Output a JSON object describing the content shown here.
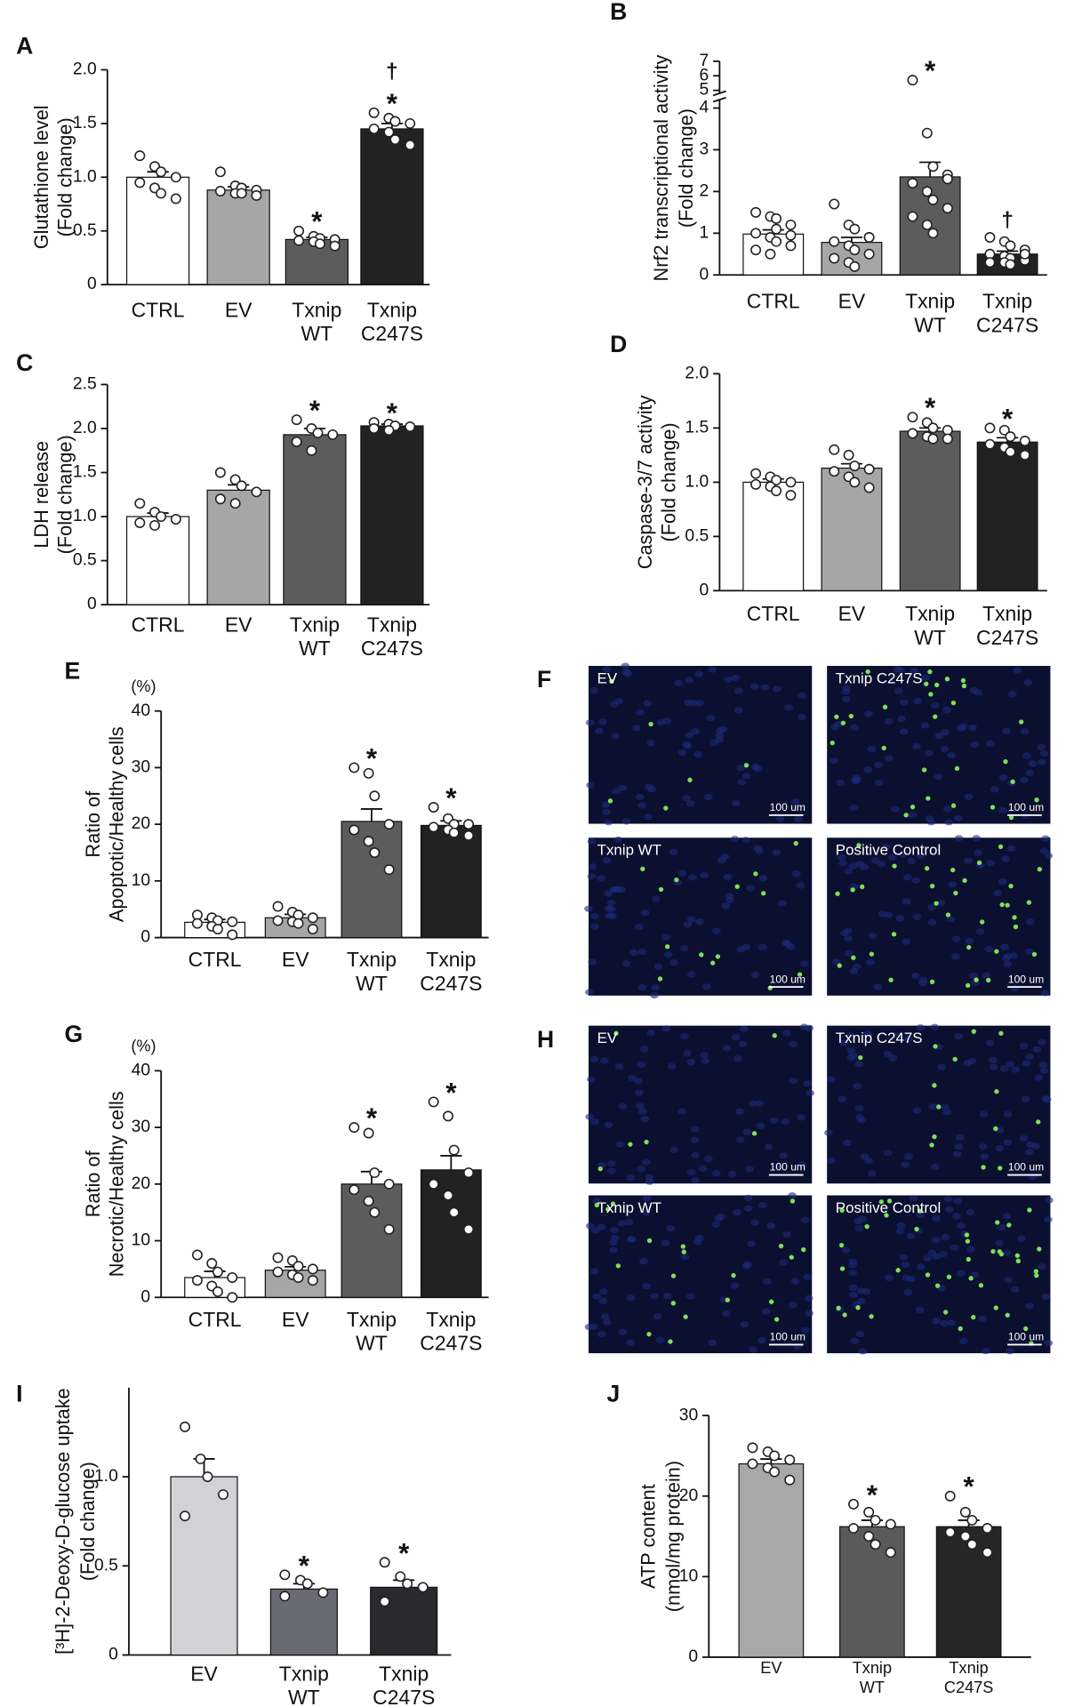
{
  "chart_data": [
    {
      "type": "bar",
      "label": "A",
      "ylabel": [
        "Glutathione level",
        "(Fold change)"
      ],
      "categories": [
        "CTRL",
        "EV",
        "Txnip\nWT",
        "Txnip\nC247S"
      ],
      "values": [
        1.0,
        0.88,
        0.42,
        1.45
      ],
      "errors": [
        0.05,
        0.03,
        0.02,
        0.05
      ],
      "points": [
        [
          1.2,
          1.1,
          1.05,
          1.0,
          0.95,
          0.9,
          0.85,
          0.8
        ],
        [
          1.05,
          0.92,
          0.9,
          0.88,
          0.87,
          0.85,
          0.85,
          0.83
        ],
        [
          0.5,
          0.45,
          0.43,
          0.42,
          0.41,
          0.4,
          0.38,
          0.36
        ],
        [
          1.6,
          1.55,
          1.52,
          1.5,
          1.45,
          1.42,
          1.35,
          1.3
        ]
      ],
      "colors": [
        "#ffffff",
        "#a6a6a6",
        "#5c5c5c",
        "#222222"
      ],
      "markers": [
        null,
        null,
        [
          "*"
        ],
        [
          "†",
          "*"
        ]
      ],
      "ylim": [
        0,
        2
      ],
      "yticks": [
        0,
        0.5,
        {
          "value": 1,
          "label": "1.0"
        },
        1.5,
        {
          "value": 2,
          "label": "2.0"
        }
      ]
    },
    {
      "type": "bar",
      "label": "B",
      "ylabel": [
        "Nrf2 transcriptional activity",
        "(Fold change)"
      ],
      "categories": [
        "CTRL",
        "EV",
        "Txnip\nWT",
        "Txnip\nC247S"
      ],
      "values": [
        0.98,
        0.78,
        2.35,
        0.5
      ],
      "errors": [
        0.1,
        0.12,
        0.35,
        0.07
      ],
      "points": [
        [
          1.5,
          1.4,
          1.35,
          1.2,
          1.0,
          0.9,
          0.8,
          0.7,
          0.6,
          0.5,
          1.1,
          0.95
        ],
        [
          1.7,
          1.2,
          1.1,
          0.9,
          0.8,
          0.7,
          0.6,
          0.5,
          0.4,
          0.3,
          0.2,
          0.9
        ],
        [
          5.7,
          3.4,
          2.6,
          2.4,
          2.2,
          2.0,
          1.8,
          1.6,
          1.4,
          1.2,
          1.0,
          2.3
        ],
        [
          0.9,
          0.8,
          0.7,
          0.6,
          0.5,
          0.45,
          0.4,
          0.35,
          0.3,
          0.3,
          0.25,
          0.5
        ]
      ],
      "colors": [
        "#ffffff",
        "#a6a6a6",
        "#5c5c5c",
        "#222222"
      ],
      "markers": [
        null,
        null,
        [
          "*"
        ],
        [
          "†"
        ]
      ],
      "ylim": [
        0,
        7
      ],
      "ybreak": [
        4.2,
        4.8
      ],
      "yticks": [
        0,
        1,
        2,
        3,
        4,
        5,
        6,
        7
      ]
    },
    {
      "type": "bar",
      "label": "C",
      "ylabel": [
        "LDH release",
        "(Fold change)"
      ],
      "categories": [
        "CTRL",
        "EV",
        "Txnip\nWT",
        "Txnip\nC247S"
      ],
      "values": [
        1.0,
        1.3,
        1.93,
        2.03
      ],
      "errors": [
        0.04,
        0.06,
        0.07,
        0.02
      ],
      "points": [
        [
          1.15,
          1.05,
          1.0,
          0.97,
          0.93,
          0.9
        ],
        [
          1.5,
          1.42,
          1.35,
          1.28,
          1.2,
          1.15
        ],
        [
          2.1,
          2.0,
          1.95,
          1.93,
          1.85,
          1.75
        ],
        [
          2.07,
          2.05,
          2.03,
          2.02,
          2.0,
          1.98
        ]
      ],
      "colors": [
        "#ffffff",
        "#a6a6a6",
        "#5c5c5c",
        "#222222"
      ],
      "markers": [
        null,
        null,
        [
          "*"
        ],
        [
          "*"
        ]
      ],
      "ylim": [
        0,
        2.5
      ],
      "yticks": [
        0,
        0.5,
        {
          "value": 1,
          "label": "1.0"
        },
        1.5,
        {
          "value": 2,
          "label": "2.0"
        },
        2.5
      ]
    },
    {
      "type": "bar",
      "label": "D",
      "ylabel": [
        "Caspase-3/7 activity",
        "(Fold change)"
      ],
      "categories": [
        "CTRL",
        "EV",
        "Txnip\nWT",
        "Txnip\nC247S"
      ],
      "values": [
        1.0,
        1.13,
        1.47,
        1.37
      ],
      "errors": [
        0.03,
        0.04,
        0.03,
        0.04
      ],
      "points": [
        [
          1.08,
          1.05,
          1.02,
          1.0,
          0.98,
          0.96,
          0.92,
          0.88
        ],
        [
          1.3,
          1.25,
          1.15,
          1.12,
          1.1,
          1.05,
          1.0,
          0.95
        ],
        [
          1.6,
          1.55,
          1.5,
          1.48,
          1.45,
          1.42,
          1.4,
          1.4
        ],
        [
          1.5,
          1.48,
          1.42,
          1.38,
          1.35,
          1.32,
          1.28,
          1.25
        ]
      ],
      "colors": [
        "#ffffff",
        "#a6a6a6",
        "#5c5c5c",
        "#222222"
      ],
      "markers": [
        null,
        null,
        [
          "*"
        ],
        [
          "*"
        ]
      ],
      "ylim": [
        0,
        2
      ],
      "yticks": [
        0,
        0.5,
        {
          "value": 1,
          "label": "1.0"
        },
        1.5,
        {
          "value": 2,
          "label": "2.0"
        }
      ]
    },
    {
      "type": "bar",
      "label": "E",
      "ylabel": [
        "Ratio of",
        "Apoptotic/Healthy cells"
      ],
      "yunit": "(%)",
      "categories": [
        "CTRL",
        "EV",
        "Txnip\nWT",
        "Txnip\nC247S"
      ],
      "values": [
        2.7,
        3.5,
        20.5,
        19.8
      ],
      "errors": [
        0.5,
        0.6,
        2.2,
        0.8
      ],
      "points": [
        [
          4,
          3.5,
          3,
          2.8,
          2.5,
          2,
          1.5,
          0.5
        ],
        [
          5.5,
          4.5,
          4,
          3.5,
          3,
          2.8,
          2.5,
          1.5
        ],
        [
          30,
          29,
          25,
          20,
          19,
          17,
          15,
          12
        ],
        [
          23,
          21,
          20,
          20,
          19.5,
          19,
          18.5,
          18
        ]
      ],
      "colors": [
        "#ffffff",
        "#a6a6a6",
        "#5c5c5c",
        "#222222"
      ],
      "markers": [
        null,
        null,
        [
          "*"
        ],
        [
          "*"
        ]
      ],
      "ylim": [
        0,
        40
      ],
      "yticks": [
        0,
        10,
        20,
        30,
        40
      ]
    },
    {
      "type": "bar",
      "label": "G",
      "ylabel": [
        "Ratio of",
        "Necrotic/Healthy cells"
      ],
      "yunit": "(%)",
      "categories": [
        "CTRL",
        "EV",
        "Txnip\nWT",
        "Txnip\nC247S"
      ],
      "values": [
        3.5,
        4.8,
        20,
        22.5
      ],
      "errors": [
        1.1,
        0.6,
        2.2,
        2.5
      ],
      "points": [
        [
          7.5,
          6,
          4.5,
          3.5,
          3,
          2,
          1,
          0
        ],
        [
          7,
          6.5,
          5.5,
          5,
          4.5,
          4,
          3.5,
          3
        ],
        [
          30,
          29,
          22,
          20,
          19,
          17,
          15,
          12
        ],
        [
          34.5,
          32,
          26,
          22,
          20,
          18,
          15,
          12
        ]
      ],
      "colors": [
        "#ffffff",
        "#a6a6a6",
        "#5c5c5c",
        "#222222"
      ],
      "markers": [
        null,
        null,
        [
          "*"
        ],
        [
          "*"
        ]
      ],
      "ylim": [
        0,
        40
      ],
      "yticks": [
        0,
        10,
        20,
        30,
        40
      ]
    },
    {
      "type": "bar",
      "label": "I",
      "ylabel": [
        "[³H]-2-Deoxy-D-glucose uptake",
        "(Fold change)"
      ],
      "categories": [
        "EV",
        "Txnip\nWT",
        "Txnip\nC247S"
      ],
      "values": [
        1.0,
        0.37,
        0.38
      ],
      "errors": [
        0.1,
        0.03,
        0.04
      ],
      "points": [
        [
          1.28,
          1.1,
          1.0,
          0.9,
          0.78
        ],
        [
          0.45,
          0.42,
          0.4,
          0.35,
          0.33
        ],
        [
          0.52,
          0.44,
          0.4,
          0.38,
          0.3
        ]
      ],
      "colors": [
        "#d2d2d6",
        "#6a6a74",
        "#2a2a2e"
      ],
      "markers": [
        null,
        [
          "*"
        ],
        [
          "*"
        ]
      ],
      "ylim": [
        0,
        1.5
      ],
      "yticks": [
        0,
        0.5,
        {
          "value": 1,
          "label": "1.0"
        }
      ]
    },
    {
      "type": "bar",
      "label": "J",
      "ylabel": [
        "ATP content",
        "(nmol/mg protein)"
      ],
      "categories": [
        "EV",
        "Txnip\nWT",
        "Txnip\nC247S"
      ],
      "values": [
        24,
        16.2,
        16.2
      ],
      "errors": [
        0.6,
        0.8,
        0.8
      ],
      "points": [
        [
          26,
          25.5,
          25,
          24.5,
          24,
          23.5,
          23,
          22
        ],
        [
          19,
          18,
          17,
          16.5,
          16,
          15,
          14,
          13
        ],
        [
          20,
          18,
          17,
          16,
          15.5,
          15,
          14,
          13
        ]
      ],
      "colors": [
        "#a8a8a8",
        "#5a5a5a",
        "#262626"
      ],
      "markers": [
        null,
        [
          "*"
        ],
        [
          "*"
        ]
      ],
      "ylim": [
        0,
        30
      ],
      "yticks": [
        0,
        10,
        20,
        30
      ]
    }
  ],
  "micrographs": [
    {
      "label": "F",
      "panels": [
        {
          "title": "EV",
          "scale": "100 um"
        },
        {
          "title": "Txnip C247S",
          "scale": "100 um"
        },
        {
          "title": "Txnip WT",
          "scale": "100 um"
        },
        {
          "title": "Positive Control",
          "scale": "100 um"
        }
      ]
    },
    {
      "label": "H",
      "panels": [
        {
          "title": "EV",
          "scale": "100 um"
        },
        {
          "title": "Txnip C247S",
          "scale": "100 um"
        },
        {
          "title": "Txnip WT",
          "scale": "100 um"
        },
        {
          "title": "Positive Control",
          "scale": "100 um"
        }
      ]
    }
  ]
}
